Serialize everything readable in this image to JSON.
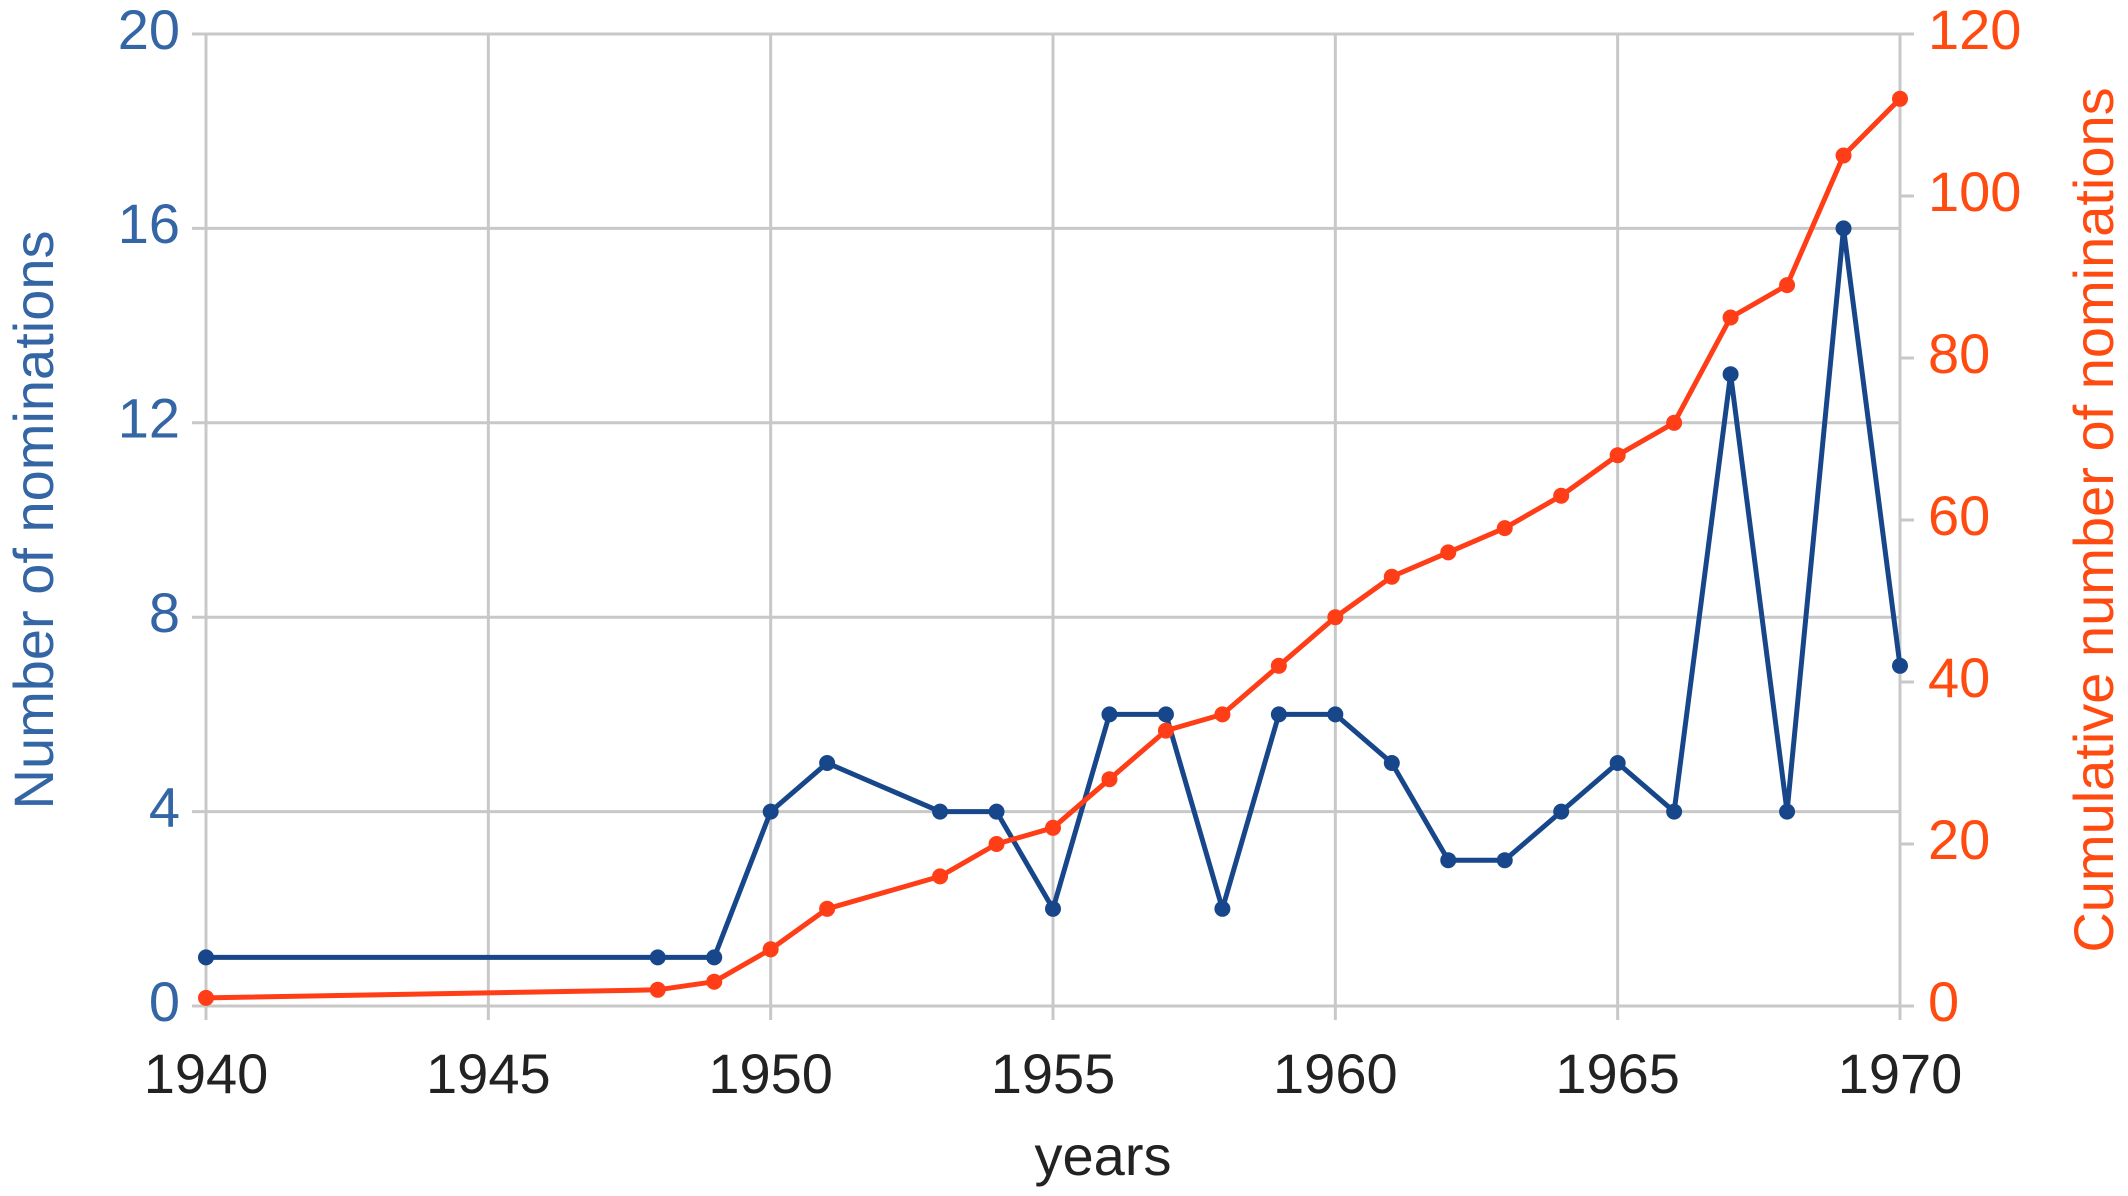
{
  "chart_data": {
    "type": "line",
    "x_label": "years",
    "y_label": "Number of nominations",
    "y2_label": "Cumulative number of nominations",
    "x": [
      1940,
      1948,
      1949,
      1950,
      1951,
      1953,
      1954,
      1955,
      1956,
      1957,
      1958,
      1959,
      1960,
      1961,
      1962,
      1963,
      1964,
      1965,
      1966,
      1967,
      1968,
      1969,
      1970
    ],
    "series": [
      {
        "name": "Number of nominations",
        "color": "#17478a",
        "axis": "y",
        "values": [
          1,
          1,
          1,
          4,
          5,
          4,
          4,
          2,
          6,
          6,
          2,
          6,
          6,
          5,
          3,
          3,
          4,
          5,
          4,
          13,
          4,
          16,
          7
        ]
      },
      {
        "name": "Cumulative number of nominations",
        "color": "#ff3d17",
        "axis": "y2",
        "values": [
          1,
          2,
          3,
          7,
          12,
          16,
          20,
          22,
          28,
          34,
          36,
          42,
          48,
          53,
          56,
          59,
          63,
          68,
          72,
          85,
          89,
          105,
          112
        ]
      }
    ],
    "xlim": [
      1940,
      1970
    ],
    "xticks": [
      1940,
      1945,
      1950,
      1955,
      1960,
      1965,
      1970
    ],
    "ylim": [
      0,
      20
    ],
    "yticks": [
      0,
      4,
      8,
      12,
      16,
      20
    ],
    "y2lim": [
      0,
      120
    ],
    "y2ticks": [
      0,
      20,
      40,
      60,
      80,
      100,
      120
    ],
    "grid": true,
    "y_color": "#3465a4",
    "y2_color": "#ff4a10",
    "x_color": "#222222"
  }
}
